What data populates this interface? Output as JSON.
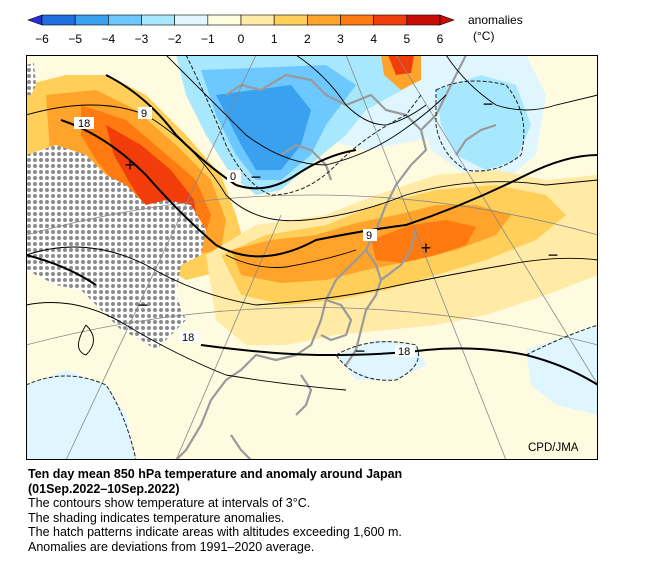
{
  "colorbar": {
    "ticks": [
      "−6",
      "−5",
      "−4",
      "−3",
      "−2",
      "−1",
      "0",
      "1",
      "2",
      "3",
      "4",
      "5",
      "6"
    ],
    "title_line1": "anomalies",
    "title_line2": "(°C)",
    "colors": [
      "#2b2bd6",
      "#1f6fe0",
      "#3aa0f0",
      "#6cc8ff",
      "#a8e8ff",
      "#dff6ff",
      "#fffbe0",
      "#ffeaa6",
      "#ffcf5a",
      "#ffa32a",
      "#ff7a10",
      "#f23d0a",
      "#c80c05"
    ]
  },
  "map": {
    "contour_labels": [
      "18",
      "9",
      "0",
      "9",
      "18",
      "18"
    ],
    "anomaly_signs": [
      "+",
      "−",
      "+",
      "−",
      "−",
      "−",
      "−"
    ],
    "credit": "CPD/JMA"
  },
  "caption": {
    "title_line1": "Ten day mean 850 hPa temperature and anomaly around Japan",
    "title_line2": "(01Sep.2022–10Sep.2022)",
    "lines": [
      "The contours show temperature at intervals of 3°C.",
      "The shading indicates temperature anomalies.",
      "The hatch patterns indicate areas with altitudes exceeding 1,600 m.",
      "Anomalies are deviations from 1991–2020 average."
    ]
  }
}
